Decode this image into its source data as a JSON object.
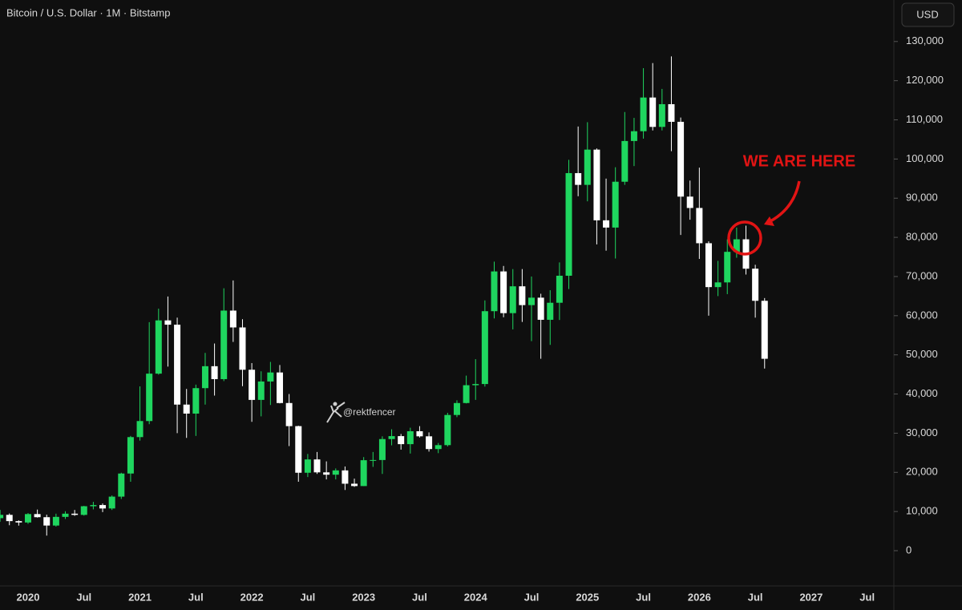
{
  "chart_data": {
    "type": "candlestick",
    "title": "Bitcoin / U.S. Dollar · 1M · Bitstamp",
    "currency": "USD",
    "watermark": "@rektfencer",
    "annotation": "WE ARE HERE",
    "up_color": "#1fd65f",
    "down_color": "#ffffff",
    "categories": [
      null,
      null,
      null,
      "2020",
      null,
      null,
      null,
      null,
      null,
      "Jul",
      null,
      null,
      null,
      null,
      null,
      "2021",
      null,
      null,
      null,
      null,
      null,
      "Jul",
      null,
      null,
      null,
      null,
      null,
      "2022",
      null,
      null,
      null,
      null,
      null,
      "Jul",
      null,
      null,
      null,
      null,
      null,
      "2023",
      null,
      null,
      null,
      null,
      null,
      "Jul",
      null,
      null,
      null,
      null,
      null,
      "2024",
      null,
      null,
      null,
      null,
      null,
      "Jul",
      null,
      null,
      null,
      null,
      null,
      "2025",
      null,
      null,
      null,
      null,
      null,
      "Jul",
      null,
      null,
      null,
      null,
      null,
      "2026",
      null,
      null,
      null,
      null,
      null,
      "Jul",
      null,
      null,
      null,
      null,
      null,
      "2027",
      null,
      null,
      null,
      null,
      null,
      "Jul"
    ],
    "open": [
      8300,
      9150,
      7550,
      7200,
      9350,
      8550,
      6420,
      8630,
      9450,
      9140,
      11350,
      11650,
      10780,
      13800,
      19700,
      29000,
      33100,
      45200,
      58800,
      57700,
      37300,
      35000,
      41500,
      47100,
      43800,
      61300,
      57000,
      46200,
      38500,
      43200,
      45500,
      37700,
      31800,
      19900,
      23300,
      20000,
      19400,
      20500,
      17100,
      16500,
      23100,
      23150,
      28500,
      29250,
      27200,
      30500,
      29200,
      25950,
      26950,
      34650,
      37700,
      42250,
      42550,
      61150,
      71300,
      60650,
      67500,
      62700,
      64600,
      58950,
      63300,
      70200,
      96400,
      93400,
      102400,
      84350,
      82500,
      94200,
      104600,
      107100,
      115700,
      108200,
      114000,
      109500,
      90400,
      87500,
      78500,
      67300,
      68500,
      76300,
      79500,
      72000,
      63800,
      null,
      null,
      null,
      null,
      null,
      null,
      null,
      null,
      null,
      null,
      null
    ],
    "high": [
      10400,
      9500,
      7750,
      9600,
      10500,
      9200,
      9450,
      10070,
      10400,
      11450,
      12470,
      12050,
      14100,
      19900,
      29300,
      41950,
      58350,
      61800,
      64900,
      59500,
      41300,
      42400,
      50500,
      52900,
      67000,
      69000,
      59100,
      47900,
      45800,
      48200,
      47400,
      40000,
      31900,
      24700,
      25200,
      22800,
      21000,
      21500,
      18400,
      23900,
      25200,
      29200,
      31000,
      29800,
      31400,
      31800,
      30200,
      27500,
      35200,
      38400,
      44700,
      48900,
      63900,
      73800,
      72700,
      71900,
      71900,
      70000,
      65600,
      66500,
      73600,
      99800,
      108300,
      109400,
      102700,
      95000,
      97900,
      112000,
      110500,
      123200,
      124500,
      117900,
      126200,
      110600,
      94500,
      97800,
      79000,
      74000,
      79500,
      82500,
      83000,
      73000,
      64500,
      null,
      null,
      null,
      null,
      null,
      null,
      null,
      null,
      null,
      null,
      null
    ],
    "low": [
      7400,
      6500,
      6400,
      6850,
      8450,
      3850,
      6150,
      8100,
      8900,
      8950,
      10550,
      9850,
      10400,
      13200,
      17600,
      28100,
      32300,
      44950,
      47000,
      30000,
      28800,
      29300,
      37300,
      39600,
      43300,
      53300,
      42000,
      32900,
      34300,
      37200,
      37600,
      26700,
      17600,
      18800,
      19600,
      18200,
      18200,
      15500,
      16300,
      16500,
      21400,
      19600,
      26900,
      25800,
      24800,
      28900,
      25300,
      24900,
      26600,
      34100,
      37600,
      38500,
      41900,
      59300,
      59600,
      56500,
      58400,
      53500,
      49000,
      52550,
      58900,
      66800,
      90500,
      89200,
      78200,
      76600,
      74600,
      93400,
      98200,
      105200,
      107300,
      107300,
      102000,
      80600,
      84500,
      74500,
      60000,
      65000,
      65500,
      74800,
      70500,
      59500,
      46500,
      null,
      null,
      null,
      null,
      null,
      null,
      null,
      null,
      null,
      null,
      null
    ],
    "close": [
      9150,
      7550,
      7200,
      9350,
      8550,
      6420,
      8630,
      9450,
      9140,
      11350,
      11650,
      10780,
      13800,
      19700,
      29000,
      33100,
      45200,
      58800,
      57700,
      37300,
      35000,
      41500,
      47100,
      43800,
      61300,
      57000,
      46200,
      38500,
      43200,
      45500,
      37700,
      31800,
      19900,
      23300,
      20000,
      19400,
      20500,
      17100,
      16500,
      23100,
      23150,
      28500,
      29250,
      27200,
      30500,
      29200,
      25950,
      26950,
      34650,
      37700,
      42250,
      42550,
      61150,
      71300,
      60650,
      67500,
      62700,
      64600,
      58950,
      63300,
      70200,
      96400,
      93400,
      102400,
      84350,
      82500,
      94200,
      104600,
      107100,
      115700,
      108200,
      114000,
      109500,
      90400,
      87500,
      78500,
      67300,
      68500,
      76300,
      79500,
      72000,
      63800,
      49000,
      null,
      null,
      null,
      null,
      null,
      null,
      null,
      null,
      null,
      null,
      null
    ],
    "ylim": [
      -8800,
      140600
    ],
    "yticks": [
      {
        "value": 0,
        "label": "0"
      },
      {
        "value": 10000,
        "label": "10,000"
      },
      {
        "value": 20000,
        "label": "20,000"
      },
      {
        "value": 30000,
        "label": "30,000"
      },
      {
        "value": 40000,
        "label": "40,000"
      },
      {
        "value": 50000,
        "label": "50,000"
      },
      {
        "value": 60000,
        "label": "60,000"
      },
      {
        "value": 70000,
        "label": "70,000"
      },
      {
        "value": 80000,
        "label": "80,000"
      },
      {
        "value": 90000,
        "label": "90,000"
      },
      {
        "value": 100000,
        "label": "100,000"
      },
      {
        "value": 110000,
        "label": "110,000"
      },
      {
        "value": 120000,
        "label": "120,000"
      },
      {
        "value": 130000,
        "label": "130,000"
      }
    ]
  }
}
